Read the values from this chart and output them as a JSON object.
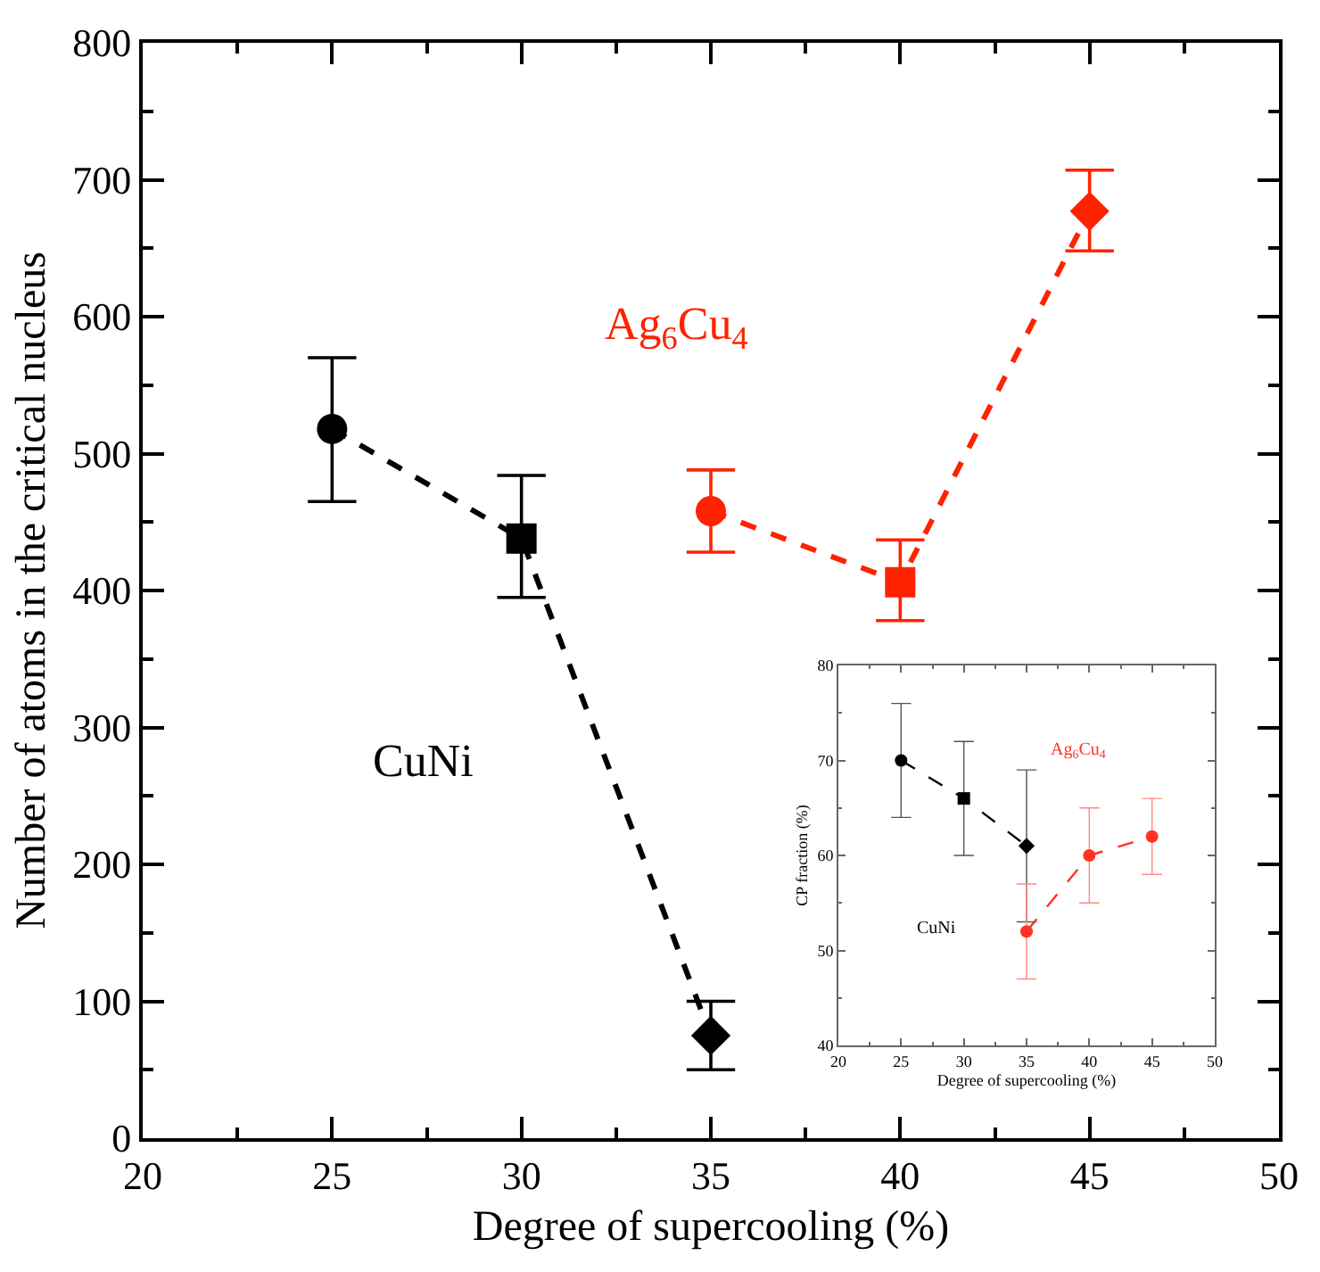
{
  "chart_data": [
    {
      "type": "line",
      "xlabel": "Degree of supercooling (%)",
      "ylabel": "Number of atoms in the critical nucleus",
      "xlim": [
        20,
        50
      ],
      "xticks": [
        20,
        25,
        30,
        35,
        40,
        45,
        50
      ],
      "ylim": [
        0,
        800
      ],
      "yticks": [
        0,
        100,
        200,
        300,
        400,
        500,
        600,
        700,
        800
      ],
      "grid": false,
      "legend": false,
      "line_style": "dashed",
      "series": [
        {
          "name": "CuNi",
          "color": "#000000",
          "x": [
            25,
            30,
            35
          ],
          "values": [
            518,
            438,
            75
          ],
          "errors": [
            [
              465,
              570
            ],
            [
              395,
              484
            ],
            [
              50,
              100
            ]
          ],
          "marker": [
            "circle",
            "square",
            "diamond"
          ]
        },
        {
          "name": "Ag$_{6}$Cu$_{4}$",
          "color": "#ff2200",
          "x": [
            35,
            40,
            45
          ],
          "values": [
            458,
            406,
            677
          ],
          "errors": [
            [
              428,
              488
            ],
            [
              378,
              437
            ],
            [
              648,
              707
            ]
          ],
          "marker": [
            "circle",
            "square",
            "diamond"
          ]
        }
      ]
    },
    {
      "type": "line",
      "xlabel": "Degree of supercooling (%)",
      "ylabel": "CP fraction (%)",
      "xlim": [
        20,
        50
      ],
      "xticks": [
        20,
        25,
        30,
        35,
        40,
        45,
        50
      ],
      "ylim": [
        40,
        80
      ],
      "yticks": [
        40,
        50,
        60,
        70,
        80
      ],
      "grid": false,
      "legend": false,
      "line_style": "dashed",
      "series": [
        {
          "name": "CuNi",
          "color": "#000000",
          "x": [
            25,
            30,
            35
          ],
          "values": [
            70,
            66,
            61
          ],
          "errors": [
            [
              64,
              76
            ],
            [
              60,
              72
            ],
            [
              53,
              69
            ]
          ],
          "marker": [
            "circle",
            "square",
            "diamond"
          ]
        },
        {
          "name": "Ag$_{6}$Cu$_{4}$",
          "color": "#ff3322",
          "x": [
            35,
            40,
            45
          ],
          "values": [
            52,
            60,
            62
          ],
          "errors": [
            [
              47,
              57
            ],
            [
              55,
              65
            ],
            [
              58,
              66
            ]
          ],
          "marker": [
            "circle",
            "circle",
            "circle"
          ]
        }
      ]
    }
  ]
}
